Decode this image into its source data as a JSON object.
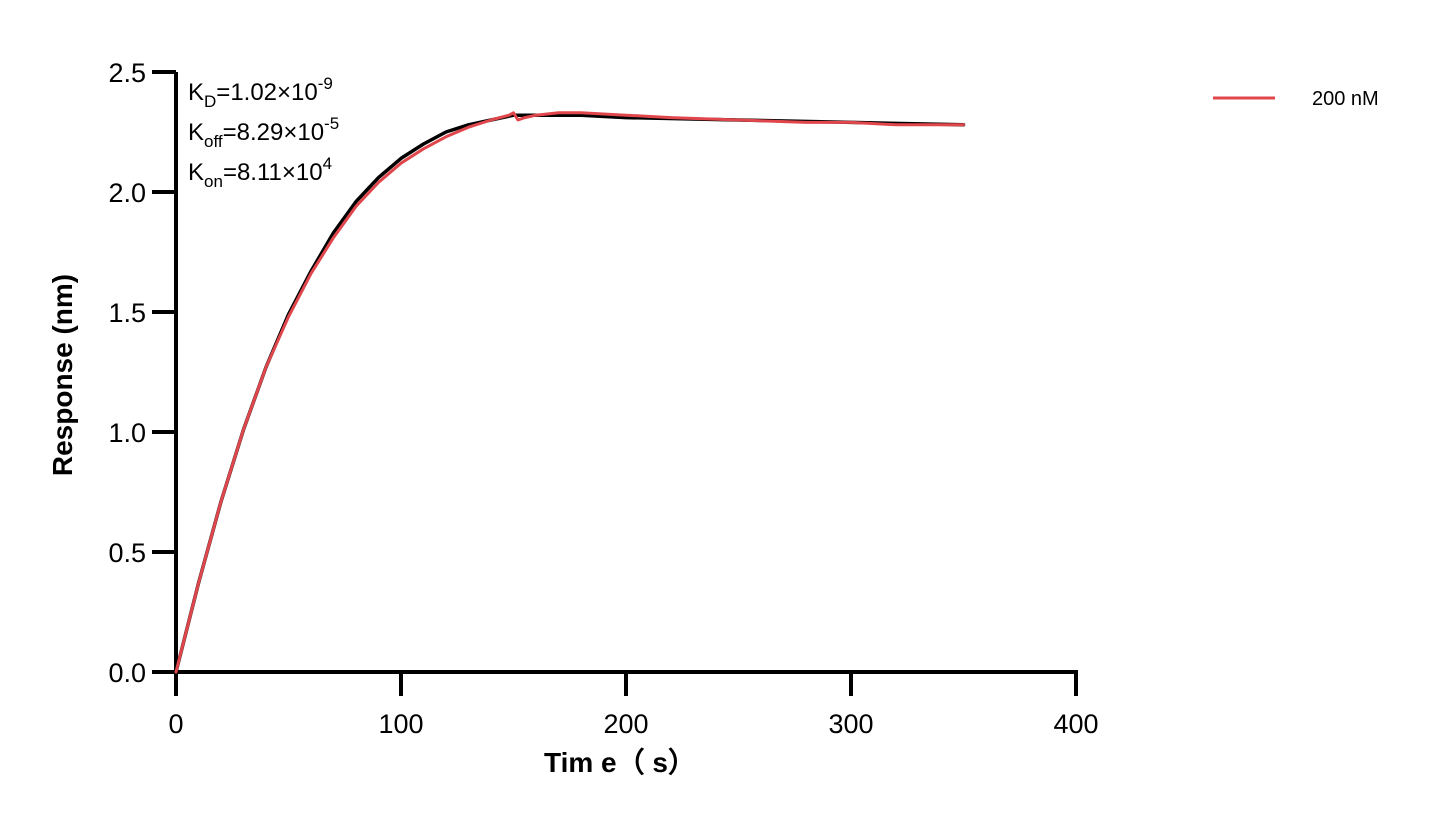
{
  "chart_data": {
    "type": "line",
    "title": "",
    "xlabel": "Tim e（ s）",
    "ylabel": "Response (nm)",
    "xlim": [
      0,
      400
    ],
    "ylim": [
      0,
      2.5
    ],
    "x_ticks": [
      0,
      100,
      200,
      300,
      400
    ],
    "x_tick_labels": [
      "0",
      "100",
      "200",
      "300",
      "400"
    ],
    "y_ticks": [
      0,
      0.5,
      1.0,
      1.5,
      2.0,
      2.5
    ],
    "y_tick_labels": [
      "0.0",
      "0.5",
      "1.0",
      "1.5",
      "2.0",
      "2.5"
    ],
    "grid": false,
    "legend_position": "top-right",
    "annotations": [
      {
        "base": "K",
        "sub": "D",
        "text": "=1.02×10",
        "sup": "-9"
      },
      {
        "base": "K",
        "sub": "off",
        "text": "=8.29×10",
        "sup": "-5"
      },
      {
        "base": "K",
        "sub": "on",
        "text": "=8.11×10",
        "sup": "4"
      }
    ],
    "series": [
      {
        "name": "200 nM",
        "color": "#e0474c",
        "x": [
          0,
          10,
          20,
          30,
          40,
          50,
          60,
          70,
          80,
          90,
          100,
          110,
          120,
          130,
          140,
          148,
          150,
          152,
          155,
          160,
          170,
          180,
          200,
          220,
          250,
          280,
          300,
          320,
          340,
          350
        ],
        "y": [
          0,
          0.37,
          0.71,
          1.01,
          1.27,
          1.48,
          1.66,
          1.81,
          1.94,
          2.04,
          2.12,
          2.18,
          2.23,
          2.27,
          2.3,
          2.32,
          2.33,
          2.3,
          2.31,
          2.32,
          2.33,
          2.33,
          2.32,
          2.31,
          2.3,
          2.29,
          2.29,
          2.28,
          2.28,
          2.28
        ]
      },
      {
        "name": "",
        "color": "#000000",
        "x": [
          0,
          10,
          20,
          30,
          40,
          50,
          60,
          70,
          80,
          90,
          100,
          110,
          120,
          130,
          140,
          150,
          160,
          180,
          200,
          250,
          300,
          350
        ],
        "y": [
          0,
          0.37,
          0.71,
          1.01,
          1.27,
          1.49,
          1.67,
          1.83,
          1.96,
          2.06,
          2.14,
          2.2,
          2.25,
          2.28,
          2.3,
          2.32,
          2.32,
          2.32,
          2.31,
          2.3,
          2.29,
          2.28
        ]
      }
    ]
  }
}
